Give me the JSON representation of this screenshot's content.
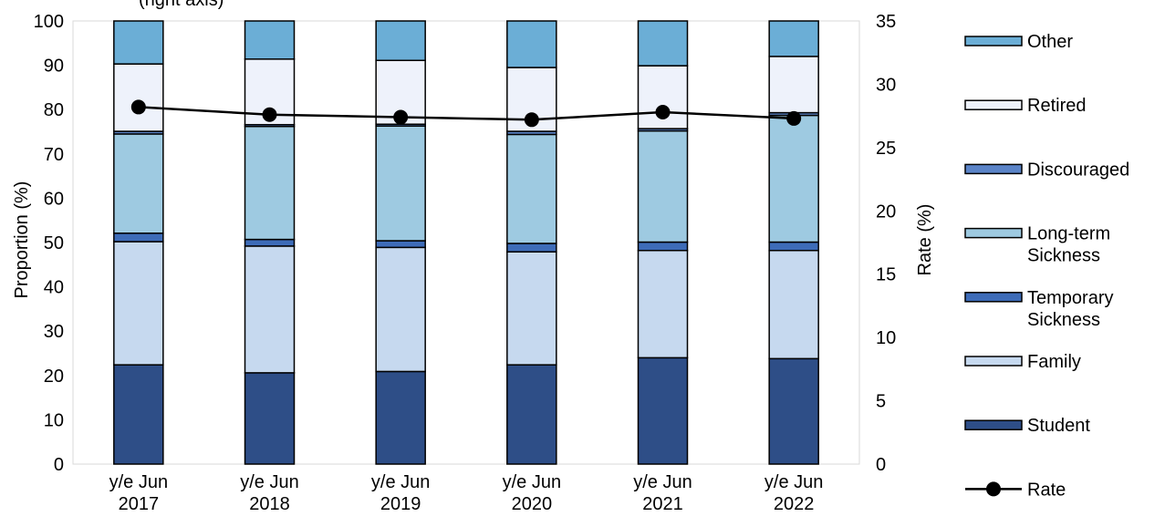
{
  "chart_data": {
    "type": "bar",
    "stacked": true,
    "title": "",
    "top_label_fragment": "(right axis)",
    "categories": [
      [
        "y/e Jun",
        "2017"
      ],
      [
        "y/e Jun",
        "2018"
      ],
      [
        "y/e Jun",
        "2019"
      ],
      [
        "y/e Jun",
        "2020"
      ],
      [
        "y/e Jun",
        "2021"
      ],
      [
        "y/e Jun",
        "2022"
      ]
    ],
    "ylabel": "Proportion (%)",
    "y2label": "Rate (%)",
    "ylim": [
      0,
      100
    ],
    "y2lim": [
      0,
      35
    ],
    "yticks": [
      "0",
      "10",
      "20",
      "30",
      "40",
      "50",
      "60",
      "70",
      "80",
      "90",
      "100"
    ],
    "y2ticks": [
      "0",
      "5",
      "10",
      "15",
      "20",
      "25",
      "30",
      "35"
    ],
    "grid": false,
    "legend_position": "right",
    "series": [
      {
        "name": "Student",
        "color": "#2e4e87",
        "values": [
          22.4,
          20.6,
          20.9,
          22.4,
          24.0,
          23.8
        ]
      },
      {
        "name": "Family",
        "color": "#c6d9ef",
        "values": [
          27.8,
          28.6,
          28.0,
          25.5,
          24.2,
          24.4
        ]
      },
      {
        "name": "Temporary Sickness",
        "color": "#3e6cb8",
        "values": [
          1.9,
          1.5,
          1.5,
          1.9,
          1.9,
          1.9
        ]
      },
      {
        "name": "Long-term Sickness",
        "color": "#9ecae1",
        "values": [
          22.4,
          25.5,
          25.9,
          24.6,
          25.1,
          28.6
        ]
      },
      {
        "name": "Discouraged",
        "color": "#5b84c8",
        "values": [
          0.6,
          0.4,
          0.4,
          0.7,
          0.5,
          0.6
        ]
      },
      {
        "name": "Retired",
        "color": "#eef2fb",
        "values": [
          15.2,
          14.8,
          14.4,
          14.4,
          14.2,
          12.7
        ]
      },
      {
        "name": "Other",
        "color": "#6baed6",
        "values": [
          9.7,
          8.6,
          8.9,
          10.5,
          10.1,
          8.0
        ]
      }
    ],
    "line_series": {
      "name": "Rate",
      "axis": "right",
      "color": "#000000",
      "values": [
        28.2,
        27.6,
        27.4,
        27.2,
        27.8,
        27.3
      ]
    },
    "legend_order": [
      "Other",
      "Retired",
      "Discouraged",
      "Long-term Sickness",
      "Temporary Sickness",
      "Family",
      "Student",
      "Rate"
    ]
  }
}
